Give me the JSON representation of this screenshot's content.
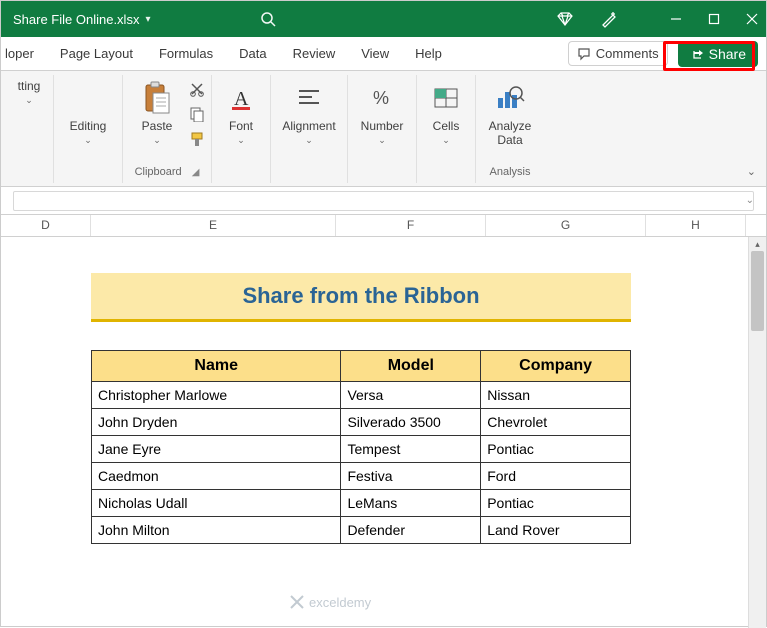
{
  "colors": {
    "excel_green": "#107c41",
    "highlight_red": "#ff0000",
    "banner_bg": "#fce9a8",
    "banner_border": "#e0b400",
    "banner_text": "#2a6495",
    "th_bg": "#fcdf8a"
  },
  "titlebar": {
    "filename": "Share File Online.xlsx"
  },
  "tabs": {
    "t0": "loper",
    "t1": "Page Layout",
    "t2": "Formulas",
    "t3": "Data",
    "t4": "Review",
    "t5": "View",
    "t6": "Help"
  },
  "actions": {
    "comments": "Comments",
    "share": "Share"
  },
  "ribbon": {
    "g0": {
      "btn": "tting",
      "label": ""
    },
    "g1": {
      "btn": "Editing",
      "label": ""
    },
    "g2": {
      "btn": "Paste",
      "label": "Clipboard"
    },
    "g3": {
      "btn": "Font",
      "label": ""
    },
    "g4": {
      "btn": "Alignment",
      "label": ""
    },
    "g5": {
      "btn": "Number",
      "label": ""
    },
    "g6": {
      "btn": "Cells",
      "label": ""
    },
    "g7": {
      "btn": "Analyze\nData",
      "label": "Analysis"
    }
  },
  "columns": {
    "c0": "D",
    "c1": "E",
    "c2": "F",
    "c3": "G",
    "c4": "H"
  },
  "col_widths": {
    "c0": 90,
    "c1": 245,
    "c2": 150,
    "c3": 160,
    "c4": 100
  },
  "sheet": {
    "title": "Share from the Ribbon",
    "headers": {
      "h0": "Name",
      "h1": "Model",
      "h2": "Company"
    },
    "rows": [
      {
        "name": "Christopher Marlowe",
        "model": "Versa",
        "company": "Nissan"
      },
      {
        "name": "John Dryden",
        "model": "Silverado 3500",
        "company": "Chevrolet"
      },
      {
        "name": "Jane Eyre",
        "model": "Tempest",
        "company": "Pontiac"
      },
      {
        "name": "Caedmon",
        "model": "Festiva",
        "company": "Ford"
      },
      {
        "name": "Nicholas Udall",
        "model": "LeMans",
        "company": "Pontiac"
      },
      {
        "name": "John Milton",
        "model": "Defender",
        "company": "Land Rover"
      }
    ]
  },
  "watermark": "exceldemy"
}
